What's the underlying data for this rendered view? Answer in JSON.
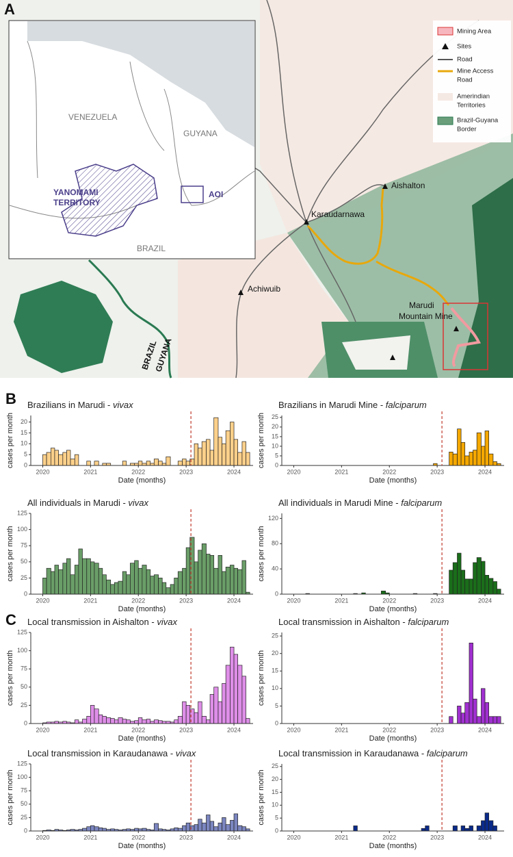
{
  "map": {
    "panel": "A",
    "countries": [
      "VENEZUELA",
      "GUYANA",
      "BRAZIL"
    ],
    "territory": [
      "YANOMAMI",
      "TERRITORY"
    ],
    "aoi": "AOI",
    "legend": [
      [
        "Mining Area"
      ],
      [
        "Sites"
      ],
      [
        "Road"
      ],
      [
        "Mine Access",
        "Road"
      ],
      [
        "Amerindian",
        "Territories"
      ],
      [
        "Brazil-Guyana",
        "Border"
      ]
    ],
    "places": {
      "aishalton": "Aishalton",
      "karaudarnawa": "Karaudarnawa",
      "achiwuib": "Achiwuib",
      "mine": [
        "Marudi",
        "Mountain Mine"
      ]
    },
    "border": [
      "BRAZIL",
      "GUYANA"
    ]
  },
  "panel_b": "B",
  "panel_c": "C",
  "chart_data": [
    {
      "type": "bar",
      "title": "Brazilians in Marudi -",
      "species": "vivax",
      "color": "#fdd08a",
      "vline": 2023.1,
      "xlabel": "Date (months)",
      "ylabel": "cases per month",
      "xlim": [
        2019.75,
        2024.4
      ],
      "xticks": [
        2020,
        2021,
        2022,
        2023,
        2024
      ],
      "ylim": [
        0,
        23
      ],
      "yticks": [
        0,
        5,
        10,
        15,
        20
      ],
      "x": [
        2020,
        2020.08,
        2020.17,
        2020.25,
        2020.33,
        2020.42,
        2020.5,
        2020.58,
        2020.67,
        2020.75,
        2020.83,
        2020.92,
        2021,
        2021.08,
        2021.17,
        2021.25,
        2021.33,
        2021.42,
        2021.5,
        2021.58,
        2021.67,
        2021.75,
        2021.83,
        2021.92,
        2022,
        2022.08,
        2022.17,
        2022.25,
        2022.33,
        2022.42,
        2022.5,
        2022.58,
        2022.67,
        2022.75,
        2022.83,
        2022.92,
        2023,
        2023.08,
        2023.17,
        2023.25,
        2023.33,
        2023.42,
        2023.5,
        2023.58,
        2023.67,
        2023.75,
        2023.83,
        2023.92,
        2024,
        2024.08,
        2024.17,
        2024.25
      ],
      "values": [
        5,
        6,
        8,
        7,
        5,
        6,
        7,
        3,
        5,
        0,
        0,
        2,
        0,
        2,
        0,
        1,
        1,
        0,
        0,
        0,
        2,
        0,
        1,
        1,
        2,
        1,
        2,
        1,
        3,
        2,
        1,
        4,
        0,
        0,
        2,
        3,
        2,
        3,
        10,
        8,
        11,
        12,
        7,
        22,
        13,
        10,
        16,
        20,
        12,
        6,
        11,
        6
      ]
    },
    {
      "type": "bar",
      "title": "Brazilians in Marudi Mine -",
      "species": "falciparum",
      "color": "#f5a800",
      "vline": 2023.1,
      "xlabel": "Date (months)",
      "ylabel": "cases per month",
      "xlim": [
        2019.75,
        2024.4
      ],
      "xticks": [
        2020,
        2021,
        2022,
        2023,
        2024
      ],
      "ylim": [
        0,
        26
      ],
      "yticks": [
        0,
        5,
        10,
        15,
        20,
        25
      ],
      "x": [
        2020,
        2020.08,
        2020.17,
        2020.25,
        2020.33,
        2020.42,
        2020.5,
        2020.58,
        2020.67,
        2020.75,
        2020.83,
        2020.92,
        2021,
        2021.08,
        2021.17,
        2021.25,
        2021.33,
        2021.42,
        2021.5,
        2021.58,
        2021.67,
        2021.75,
        2021.83,
        2021.92,
        2022,
        2022.08,
        2022.17,
        2022.25,
        2022.33,
        2022.42,
        2022.5,
        2022.58,
        2022.67,
        2022.75,
        2022.83,
        2022.92,
        2023,
        2023.08,
        2023.17,
        2023.25,
        2023.33,
        2023.42,
        2023.5,
        2023.58,
        2023.67,
        2023.75,
        2023.83,
        2023.92,
        2024,
        2024.08,
        2024.17,
        2024.25
      ],
      "values": [
        0,
        0,
        0,
        0,
        0,
        0,
        0,
        0,
        0,
        0,
        0,
        0,
        0,
        0,
        0,
        0,
        0,
        0,
        0,
        0,
        0,
        0,
        0,
        0,
        0,
        0,
        0,
        0,
        0,
        0,
        0,
        0,
        0,
        0,
        0,
        1,
        0,
        0,
        0,
        7,
        6,
        19,
        12,
        5,
        7,
        8,
        17,
        10,
        18,
        6,
        2,
        1
      ]
    },
    {
      "type": "bar",
      "title": "All individuals in Marudi -",
      "species": "vivax",
      "color": "#6a9e68",
      "vline": 2023.1,
      "xlabel": "Date (months)",
      "ylabel": "cases per month",
      "xlim": [
        2019.75,
        2024.4
      ],
      "xticks": [
        2020,
        2021,
        2022,
        2023,
        2024
      ],
      "ylim": [
        0,
        125
      ],
      "yticks": [
        0,
        25,
        50,
        75,
        100,
        125
      ],
      "x": [
        2020,
        2020.08,
        2020.17,
        2020.25,
        2020.33,
        2020.42,
        2020.5,
        2020.58,
        2020.67,
        2020.75,
        2020.83,
        2020.92,
        2021,
        2021.08,
        2021.17,
        2021.25,
        2021.33,
        2021.42,
        2021.5,
        2021.58,
        2021.67,
        2021.75,
        2021.83,
        2021.92,
        2022,
        2022.08,
        2022.17,
        2022.25,
        2022.33,
        2022.42,
        2022.5,
        2022.58,
        2022.67,
        2022.75,
        2022.83,
        2022.92,
        2023,
        2023.08,
        2023.17,
        2023.25,
        2023.33,
        2023.42,
        2023.5,
        2023.58,
        2023.67,
        2023.75,
        2023.83,
        2023.92,
        2024,
        2024.08,
        2024.17,
        2024.25
      ],
      "values": [
        25,
        40,
        35,
        45,
        38,
        48,
        55,
        30,
        45,
        70,
        55,
        55,
        50,
        48,
        40,
        30,
        22,
        15,
        18,
        20,
        35,
        30,
        48,
        52,
        40,
        45,
        38,
        28,
        30,
        25,
        18,
        10,
        15,
        25,
        35,
        40,
        72,
        88,
        50,
        68,
        78,
        62,
        60,
        40,
        60,
        35,
        42,
        45,
        40,
        38,
        52,
        3
      ]
    },
    {
      "type": "bar",
      "title": "All individuals in Marudi Mine -",
      "species": "falciparum",
      "color": "#1a6e1a",
      "vline": 2023.1,
      "xlabel": "Date (months)",
      "ylabel": "cases per month",
      "xlim": [
        2019.75,
        2024.4
      ],
      "xticks": [
        2020,
        2021,
        2022,
        2023,
        2024
      ],
      "ylim": [
        0,
        128
      ],
      "yticks": [
        0,
        40,
        80,
        120
      ],
      "x": [
        2020,
        2020.08,
        2020.17,
        2020.25,
        2020.33,
        2020.42,
        2020.5,
        2020.58,
        2020.67,
        2020.75,
        2020.83,
        2020.92,
        2021,
        2021.08,
        2021.17,
        2021.25,
        2021.33,
        2021.42,
        2021.5,
        2021.58,
        2021.67,
        2021.75,
        2021.83,
        2021.92,
        2022,
        2022.08,
        2022.17,
        2022.25,
        2022.33,
        2022.42,
        2022.5,
        2022.58,
        2022.67,
        2022.75,
        2022.83,
        2022.92,
        2023,
        2023.08,
        2023.17,
        2023.25,
        2023.33,
        2023.42,
        2023.5,
        2023.58,
        2023.67,
        2023.75,
        2023.83,
        2023.92,
        2024,
        2024.08,
        2024.17,
        2024.25
      ],
      "values": [
        0,
        0,
        0,
        1,
        0,
        0,
        0,
        0,
        0,
        0,
        0,
        0,
        0,
        0,
        0,
        1,
        0,
        2,
        0,
        0,
        0,
        0,
        5,
        2,
        0,
        0,
        0,
        0,
        0,
        0,
        1,
        0,
        0,
        0,
        0,
        1,
        0,
        0,
        0,
        38,
        50,
        65,
        38,
        24,
        24,
        50,
        58,
        52,
        30,
        25,
        20,
        8
      ]
    },
    {
      "type": "bar",
      "title": "Local transmission in Aishalton -",
      "species": "vivax",
      "color": "#de8ee8",
      "vline": 2023.1,
      "xlabel": "Date (months)",
      "ylabel": "cases per month",
      "xlim": [
        2019.75,
        2024.4
      ],
      "xticks": [
        2020,
        2021,
        2022,
        2023,
        2024
      ],
      "ylim": [
        0,
        125
      ],
      "yticks": [
        0,
        25,
        50,
        75,
        100,
        125
      ],
      "x": [
        2020,
        2020.08,
        2020.17,
        2020.25,
        2020.33,
        2020.42,
        2020.5,
        2020.58,
        2020.67,
        2020.75,
        2020.83,
        2020.92,
        2021,
        2021.08,
        2021.17,
        2021.25,
        2021.33,
        2021.42,
        2021.5,
        2021.58,
        2021.67,
        2021.75,
        2021.83,
        2021.92,
        2022,
        2022.08,
        2022.17,
        2022.25,
        2022.33,
        2022.42,
        2022.5,
        2022.58,
        2022.67,
        2022.75,
        2022.83,
        2022.92,
        2023,
        2023.08,
        2023.17,
        2023.25,
        2023.33,
        2023.42,
        2023.5,
        2023.58,
        2023.67,
        2023.75,
        2023.83,
        2023.92,
        2024,
        2024.08,
        2024.17,
        2024.25
      ],
      "values": [
        1,
        2,
        2,
        3,
        2,
        3,
        2,
        1,
        5,
        2,
        6,
        10,
        25,
        20,
        12,
        10,
        8,
        7,
        5,
        8,
        6,
        5,
        3,
        4,
        8,
        5,
        6,
        3,
        5,
        4,
        3,
        3,
        2,
        5,
        10,
        30,
        25,
        20,
        15,
        30,
        10,
        5,
        40,
        50,
        30,
        55,
        80,
        105,
        95,
        80,
        65,
        7
      ]
    },
    {
      "type": "bar",
      "title": "Local transmission in Aishalton -",
      "species": "falciparum",
      "color": "#a030d0",
      "vline": 2023.1,
      "xlabel": "Date (months)",
      "ylabel": "cases per month",
      "xlim": [
        2019.75,
        2024.4
      ],
      "xticks": [
        2020,
        2021,
        2022,
        2023,
        2024
      ],
      "ylim": [
        0,
        26
      ],
      "yticks": [
        0,
        5,
        10,
        15,
        20,
        25
      ],
      "x": [
        2020,
        2020.08,
        2020.17,
        2020.25,
        2020.33,
        2020.42,
        2020.5,
        2020.58,
        2020.67,
        2020.75,
        2020.83,
        2020.92,
        2021,
        2021.08,
        2021.17,
        2021.25,
        2021.33,
        2021.42,
        2021.5,
        2021.58,
        2021.67,
        2021.75,
        2021.83,
        2021.92,
        2022,
        2022.08,
        2022.17,
        2022.25,
        2022.33,
        2022.42,
        2022.5,
        2022.58,
        2022.67,
        2022.75,
        2022.83,
        2022.92,
        2023,
        2023.08,
        2023.17,
        2023.25,
        2023.33,
        2023.42,
        2023.5,
        2023.58,
        2023.67,
        2023.75,
        2023.83,
        2023.92,
        2024,
        2024.08,
        2024.17,
        2024.25
      ],
      "values": [
        0,
        0,
        0,
        0,
        0,
        0,
        0,
        0,
        0,
        0,
        0,
        0,
        0,
        0,
        0,
        0,
        0,
        0,
        0,
        0,
        0,
        0,
        0,
        0,
        0,
        0,
        0,
        0,
        0,
        0,
        0,
        0,
        0,
        0,
        0,
        0,
        0,
        0,
        0,
        2,
        0,
        5,
        3,
        6,
        23,
        7,
        2,
        10,
        6,
        2,
        2,
        2
      ]
    },
    {
      "type": "bar",
      "title": "Local transmission in Karaudanawa -",
      "species": "vivax",
      "color": "#7b86c0",
      "vline": 2023.1,
      "xlabel": "Date (months)",
      "ylabel": "cases per month",
      "xlim": [
        2019.75,
        2024.4
      ],
      "xticks": [
        2020,
        2021,
        2022,
        2023,
        2024
      ],
      "ylim": [
        0,
        125
      ],
      "yticks": [
        0,
        25,
        50,
        75,
        100,
        125
      ],
      "x": [
        2020,
        2020.08,
        2020.17,
        2020.25,
        2020.33,
        2020.42,
        2020.5,
        2020.58,
        2020.67,
        2020.75,
        2020.83,
        2020.92,
        2021,
        2021.08,
        2021.17,
        2021.25,
        2021.33,
        2021.42,
        2021.5,
        2021.58,
        2021.67,
        2021.75,
        2021.83,
        2021.92,
        2022,
        2022.08,
        2022.17,
        2022.25,
        2022.33,
        2022.42,
        2022.5,
        2022.58,
        2022.67,
        2022.75,
        2022.83,
        2022.92,
        2023,
        2023.08,
        2023.17,
        2023.25,
        2023.33,
        2023.42,
        2023.5,
        2023.58,
        2023.67,
        2023.75,
        2023.83,
        2023.92,
        2024,
        2024.08,
        2024.17,
        2024.25
      ],
      "values": [
        1,
        2,
        1,
        3,
        2,
        1,
        2,
        3,
        2,
        3,
        5,
        8,
        10,
        8,
        6,
        5,
        3,
        4,
        3,
        2,
        3,
        4,
        3,
        5,
        4,
        5,
        3,
        2,
        14,
        4,
        3,
        2,
        4,
        6,
        5,
        10,
        15,
        10,
        12,
        22,
        15,
        30,
        18,
        8,
        15,
        25,
        12,
        20,
        32,
        10,
        8,
        4
      ]
    },
    {
      "type": "bar",
      "title": "Local transmission in Karaudanawa -",
      "species": "falciparum",
      "color": "#0a2a8a",
      "vline": 2023.1,
      "xlabel": "Date (months)",
      "ylabel": "cases per month",
      "xlim": [
        2019.75,
        2024.4
      ],
      "xticks": [
        2020,
        2021,
        2022,
        2023,
        2024
      ],
      "ylim": [
        0,
        26
      ],
      "yticks": [
        0,
        5,
        10,
        15,
        20,
        25
      ],
      "x": [
        2020,
        2020.08,
        2020.17,
        2020.25,
        2020.33,
        2020.42,
        2020.5,
        2020.58,
        2020.67,
        2020.75,
        2020.83,
        2020.92,
        2021,
        2021.08,
        2021.17,
        2021.25,
        2021.33,
        2021.42,
        2021.5,
        2021.58,
        2021.67,
        2021.75,
        2021.83,
        2021.92,
        2022,
        2022.08,
        2022.17,
        2022.25,
        2022.33,
        2022.42,
        2022.5,
        2022.58,
        2022.67,
        2022.75,
        2022.83,
        2022.92,
        2023,
        2023.08,
        2023.17,
        2023.25,
        2023.33,
        2023.42,
        2023.5,
        2023.58,
        2023.67,
        2023.75,
        2023.83,
        2023.92,
        2024,
        2024.08,
        2024.17,
        2024.25
      ],
      "values": [
        0,
        0,
        0,
        0,
        0,
        0,
        0,
        0,
        0,
        0,
        0,
        0,
        0,
        0,
        0,
        2,
        0,
        0,
        0,
        0,
        0,
        0,
        0,
        0,
        0,
        0,
        0,
        0,
        0,
        0,
        0,
        0,
        1,
        2,
        0,
        0,
        0,
        0,
        0,
        0,
        2,
        0,
        2,
        1,
        2,
        0,
        2,
        4,
        7,
        4,
        2,
        0
      ]
    }
  ]
}
